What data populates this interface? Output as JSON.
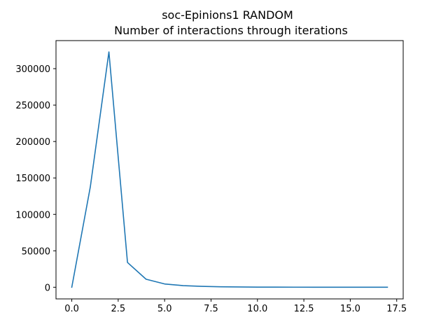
{
  "chart_data": {
    "type": "line",
    "title": "soc-Epinions1 RANDOM",
    "subtitle": "Number of interactions through iterations",
    "xlabel": "",
    "ylabel": "",
    "xlim": [
      -0.85,
      17.85
    ],
    "ylim": [
      -16000,
      338500
    ],
    "xticks": [
      0,
      2.5,
      5,
      7.5,
      10,
      12.5,
      15,
      17.5
    ],
    "xtick_labels": [
      "0.0",
      "2.5",
      "5.0",
      "7.5",
      "10.0",
      "12.5",
      "15.0",
      "17.5"
    ],
    "yticks": [
      0,
      50000,
      100000,
      150000,
      200000,
      250000,
      300000
    ],
    "ytick_labels": [
      "0",
      "50000",
      "100000",
      "150000",
      "200000",
      "250000",
      "300000"
    ],
    "grid": false,
    "legend": "none",
    "series": [
      {
        "color": "#1f77b4",
        "x": [
          0,
          1,
          2,
          3,
          4,
          5,
          6,
          7,
          8,
          9,
          10,
          11,
          12,
          13,
          14,
          15,
          16,
          17
        ],
        "y": [
          0,
          138000,
          323000,
          34000,
          11000,
          4500,
          2200,
          1200,
          600,
          350,
          200,
          120,
          80,
          50,
          30,
          20,
          15,
          10
        ]
      }
    ]
  }
}
